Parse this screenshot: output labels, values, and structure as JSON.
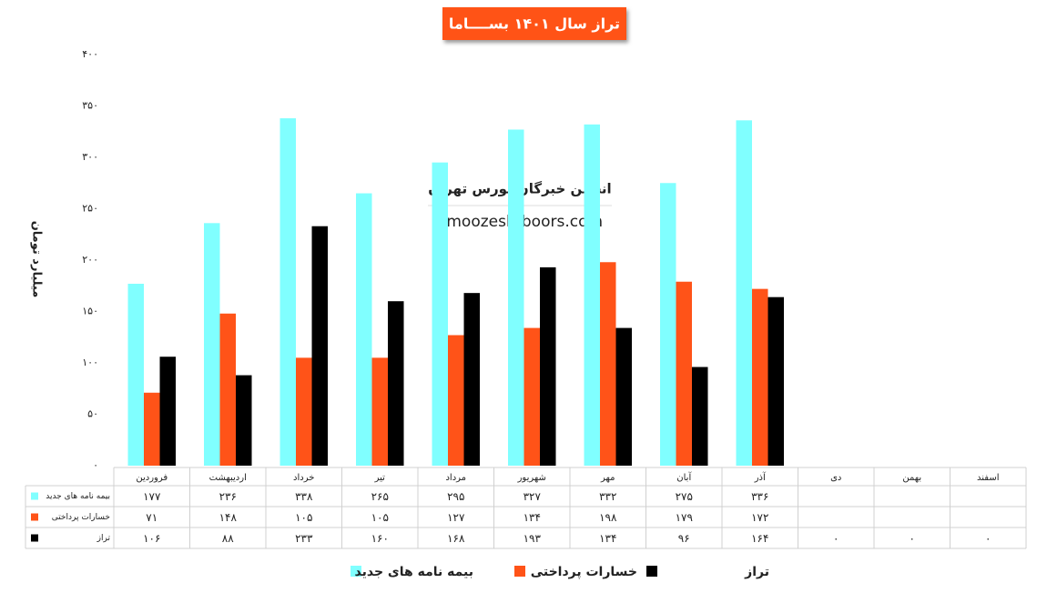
{
  "chart_data": {
    "type": "bar",
    "title": "تراز سال ۱۴۰۱ بســــاما",
    "y_label": "میلیارد تومان",
    "watermark": {
      "name": "انجمن خبرگان بورس تهران",
      "site": "amoozesh-boors.com"
    },
    "categories": [
      "فروردین",
      "اردیبهشت",
      "خرداد",
      "تیر",
      "مرداد",
      "شهریور",
      "مهر",
      "آبان",
      "آذر",
      "دی",
      "بهمن",
      "اسفند"
    ],
    "series": [
      {
        "name": "بیمه نامه های جدید",
        "color": "#80ffff",
        "values": [
          177,
          236,
          338,
          265,
          295,
          327,
          332,
          275,
          336,
          null,
          null,
          null
        ],
        "value_labels": [
          "۱۷۷",
          "۲۳۶",
          "۳۳۸",
          "۲۶۵",
          "۲۹۵",
          "۳۲۷",
          "۳۳۲",
          "۲۷۵",
          "۳۳۶",
          null,
          null,
          null
        ]
      },
      {
        "name": "خسارات پرداختی",
        "color": "#ff5318",
        "values": [
          71,
          148,
          105,
          105,
          127,
          134,
          198,
          179,
          172,
          null,
          null,
          null
        ],
        "value_labels": [
          "۷۱",
          "۱۴۸",
          "۱۰۵",
          "۱۰۵",
          "۱۲۷",
          "۱۳۴",
          "۱۹۸",
          "۱۷۹",
          "۱۷۲",
          null,
          null,
          null
        ]
      },
      {
        "name": "تراز",
        "color": "#000000",
        "values": [
          106,
          88,
          233,
          160,
          168,
          193,
          134,
          96,
          164,
          0,
          0,
          0
        ],
        "value_labels": [
          "۱۰۶",
          "۸۸",
          "۲۳۳",
          "۱۶۰",
          "۱۶۸",
          "۱۹۳",
          "۱۳۴",
          "۹۶",
          "۱۶۴",
          "۰",
          "۰",
          "۰"
        ]
      }
    ],
    "ylim": [
      0,
      400
    ],
    "yticks": [
      {
        "value": 0,
        "label": "۰"
      },
      {
        "value": 50,
        "label": "۵۰"
      },
      {
        "value": 100,
        "label": "۱۰۰"
      },
      {
        "value": 150,
        "label": "۱۵۰"
      },
      {
        "value": 200,
        "label": "۲۰۰"
      },
      {
        "value": 250,
        "label": "۲۵۰"
      },
      {
        "value": 300,
        "label": "۳۰۰"
      },
      {
        "value": 350,
        "label": "۳۵۰"
      },
      {
        "value": 400,
        "label": "۴۰۰"
      }
    ],
    "grid": false
  }
}
